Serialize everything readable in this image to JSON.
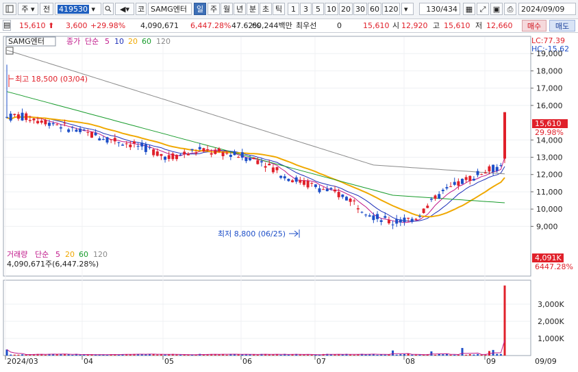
{
  "toolbar": {
    "type_label": "주",
    "prefix_label": "전",
    "stock_code": "419530",
    "stock_name_prefix": "코",
    "stock_name": "SAMG엔터",
    "periods": [
      "일",
      "주",
      "월",
      "년",
      "분",
      "초",
      "틱"
    ],
    "active_period": "일",
    "intervals": [
      "1",
      "3",
      "5",
      "10",
      "20",
      "30",
      "60",
      "120"
    ],
    "count_display": "130/434",
    "date_value": "2024/09/09"
  },
  "quote": {
    "price": "15,610",
    "change": "3,600",
    "change_rate": "+29.98%",
    "volume": "4,090,671",
    "volume_rate": "6,447.28%",
    "turnover_pct": "47.62%",
    "amount": "60,244백만",
    "priority_label": "최우선",
    "priority_value": "0",
    "last_value": "15,610",
    "open_label": "시",
    "open": "12,920",
    "high_label": "고",
    "high": "15,610",
    "low_label": "저",
    "low": "12,660",
    "buy_label": "매수",
    "sell_label": "매도"
  },
  "price_panel": {
    "legend_name": "SAMG엔터",
    "legend_close": "종가",
    "legend_simple": "단순",
    "ma_labels": [
      "5",
      "10",
      "20",
      "60",
      "120"
    ],
    "lc_label": "LC:77.39",
    "hc_label": "HC:-15.62",
    "y_ticks": [
      "19,000",
      "18,000",
      "17,000",
      "16,000",
      "14,000",
      "13,000",
      "12,000",
      "11,000",
      "10,000",
      "9,000"
    ],
    "high_note": "최고 18,500 (03/04)",
    "low_note": "최저 8,800 (06/25)",
    "current_price_tag": "15,610",
    "current_rate_tag": "29.98%"
  },
  "volume_panel": {
    "legend_name": "거래량",
    "legend_simple": "단순",
    "ma_labels": [
      "5",
      "20",
      "60",
      "120"
    ],
    "value_line": "4,090,671주(6,447.28%)",
    "y_ticks": [
      "3,000K",
      "2,000K",
      "1,000K"
    ],
    "current_tag": "4,091K",
    "current_rate": "6447.28%"
  },
  "x_axis": {
    "labels": [
      "2024/03",
      "04",
      "05",
      "06",
      "07",
      "08",
      "09"
    ],
    "right_label": "09/09"
  },
  "colors": {
    "up": "#e0202a",
    "down": "#1e4fc8",
    "ma5": "#c0188a",
    "ma10": "#1d2fb8",
    "ma20": "#f0a800",
    "ma60": "#169b2a",
    "ma120": "#8a8a8a"
  },
  "chart_data": {
    "type": "candlestick",
    "title": "SAMG엔터",
    "x": [
      "2024/03",
      "04",
      "05",
      "06",
      "07",
      "08",
      "09"
    ],
    "ylim": [
      8500,
      20000
    ],
    "annotations": [
      {
        "label": "최고",
        "value": 18500,
        "date": "03/04"
      },
      {
        "label": "최저",
        "value": 8800,
        "date": "06/25"
      }
    ],
    "last": {
      "open": 12920,
      "high": 15610,
      "low": 12660,
      "close": 15610,
      "volume": 4090671
    }
  }
}
